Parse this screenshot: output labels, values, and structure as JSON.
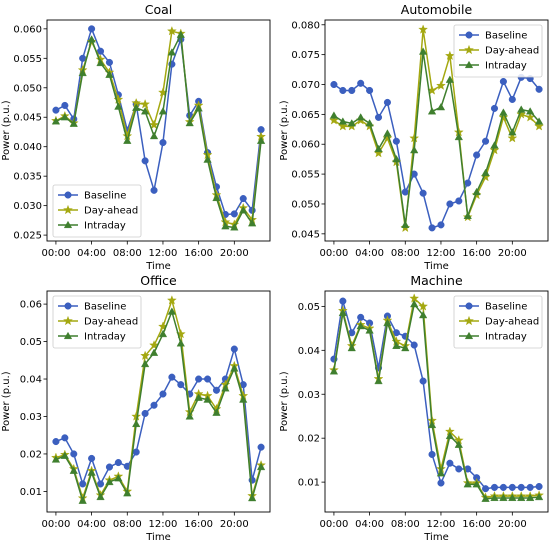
{
  "chart_data": [
    {
      "type": "line",
      "title": "Coal",
      "xlabel": "Time",
      "ylabel": "Power (p.u.)",
      "xlim": [
        -1,
        24
      ],
      "ylim": [
        0.024,
        0.0615
      ],
      "x_ticks": [
        {
          "v": 0,
          "label": "00:00"
        },
        {
          "v": 4,
          "label": "04:00"
        },
        {
          "v": 8,
          "label": "08:00"
        },
        {
          "v": 12,
          "label": "12:00"
        },
        {
          "v": 16,
          "label": "16:00"
        },
        {
          "v": 20,
          "label": "20:00"
        }
      ],
      "y_ticks": [
        0.025,
        0.03,
        0.035,
        0.04,
        0.045,
        0.05,
        0.055,
        0.06
      ],
      "y_decimals": 3,
      "legend": "lower-left",
      "series": [
        {
          "name": "Baseline",
          "color": "#3b5fbf",
          "marker": "circle",
          "values": [
            0.0462,
            0.047,
            0.0447,
            0.055,
            0.06,
            0.0562,
            0.0543,
            0.0488,
            0.0428,
            0.0472,
            0.0376,
            0.0326,
            0.0407,
            0.054,
            0.0582,
            0.0453,
            0.0477,
            0.039,
            0.0332,
            0.0285,
            0.0286,
            0.0312,
            0.0292,
            0.0429
          ]
        },
        {
          "name": "Day-ahead",
          "color": "#a4a810",
          "marker": "star",
          "values": [
            0.0444,
            0.0452,
            0.044,
            0.053,
            0.0578,
            0.0548,
            0.0526,
            0.048,
            0.0418,
            0.0474,
            0.0472,
            0.0437,
            0.0492,
            0.0596,
            0.0592,
            0.0442,
            0.047,
            0.0386,
            0.0318,
            0.0272,
            0.0268,
            0.0296,
            0.0276,
            0.0417
          ]
        },
        {
          "name": "Intraday",
          "color": "#3f7f2e",
          "marker": "triangle",
          "values": [
            0.0443,
            0.045,
            0.0439,
            0.0525,
            0.0582,
            0.0542,
            0.0522,
            0.0468,
            0.041,
            0.0466,
            0.046,
            0.0418,
            0.046,
            0.056,
            0.059,
            0.044,
            0.0465,
            0.0378,
            0.0313,
            0.0265,
            0.0263,
            0.0292,
            0.027,
            0.041
          ]
        }
      ]
    },
    {
      "type": "line",
      "title": "Automobile",
      "xlabel": "Time",
      "ylabel": "Power (p.u.)",
      "xlim": [
        -1,
        24
      ],
      "ylim": [
        0.0438,
        0.0808
      ],
      "x_ticks": [
        {
          "v": 0,
          "label": "00:00"
        },
        {
          "v": 4,
          "label": "04:00"
        },
        {
          "v": 8,
          "label": "08:00"
        },
        {
          "v": 12,
          "label": "12:00"
        },
        {
          "v": 16,
          "label": "16:00"
        },
        {
          "v": 20,
          "label": "20:00"
        }
      ],
      "y_ticks": [
        0.045,
        0.05,
        0.055,
        0.06,
        0.065,
        0.07,
        0.075,
        0.08
      ],
      "y_decimals": 3,
      "legend": "upper-right",
      "series": [
        {
          "name": "Baseline",
          "color": "#3b5fbf",
          "marker": "circle",
          "values": [
            0.07,
            0.069,
            0.069,
            0.0702,
            0.069,
            0.0645,
            0.067,
            0.0605,
            0.052,
            0.055,
            0.0518,
            0.046,
            0.0465,
            0.05,
            0.0505,
            0.0535,
            0.0582,
            0.0605,
            0.066,
            0.0705,
            0.0675,
            0.0712,
            0.071,
            0.0692
          ]
        },
        {
          "name": "Day-ahead",
          "color": "#a4a810",
          "marker": "star",
          "values": [
            0.064,
            0.063,
            0.063,
            0.064,
            0.063,
            0.0585,
            0.061,
            0.057,
            0.046,
            0.061,
            0.0792,
            0.069,
            0.0698,
            0.0748,
            0.062,
            0.0478,
            0.0515,
            0.0545,
            0.059,
            0.0645,
            0.061,
            0.065,
            0.0645,
            0.063
          ]
        },
        {
          "name": "Intraday",
          "color": "#3f7f2e",
          "marker": "triangle",
          "values": [
            0.0648,
            0.0638,
            0.0635,
            0.0645,
            0.0635,
            0.0592,
            0.0618,
            0.0575,
            0.0465,
            0.059,
            0.0755,
            0.0655,
            0.0662,
            0.0708,
            0.0612,
            0.048,
            0.052,
            0.0552,
            0.0598,
            0.0653,
            0.062,
            0.0658,
            0.0655,
            0.0638
          ]
        }
      ]
    },
    {
      "type": "line",
      "title": "Office",
      "xlabel": "Time",
      "ylabel": "Power (p.u.)",
      "xlim": [
        -1,
        24
      ],
      "ylim": [
        0.0045,
        0.0635
      ],
      "x_ticks": [
        {
          "v": 0,
          "label": "00:00"
        },
        {
          "v": 4,
          "label": "04:00"
        },
        {
          "v": 8,
          "label": "08:00"
        },
        {
          "v": 12,
          "label": "12:00"
        },
        {
          "v": 16,
          "label": "16:00"
        },
        {
          "v": 20,
          "label": "20:00"
        }
      ],
      "y_ticks": [
        0.01,
        0.02,
        0.03,
        0.04,
        0.05,
        0.06
      ],
      "y_decimals": 2,
      "legend": "upper-left",
      "series": [
        {
          "name": "Baseline",
          "color": "#3b5fbf",
          "marker": "circle",
          "values": [
            0.0233,
            0.0243,
            0.02,
            0.012,
            0.0188,
            0.012,
            0.0165,
            0.0177,
            0.0167,
            0.0205,
            0.0308,
            0.033,
            0.036,
            0.0405,
            0.0385,
            0.036,
            0.04,
            0.04,
            0.037,
            0.04,
            0.048,
            0.0385,
            0.013,
            0.0218
          ]
        },
        {
          "name": "Day-ahead",
          "color": "#a4a810",
          "marker": "star",
          "values": [
            0.019,
            0.0198,
            0.016,
            0.0082,
            0.0155,
            0.009,
            0.013,
            0.014,
            0.01,
            0.03,
            0.0462,
            0.049,
            0.054,
            0.061,
            0.052,
            0.0312,
            0.036,
            0.0355,
            0.032,
            0.0385,
            0.0435,
            0.0355,
            0.0088,
            0.017
          ]
        },
        {
          "name": "Intraday",
          "color": "#3f7f2e",
          "marker": "triangle",
          "values": [
            0.0185,
            0.0195,
            0.0155,
            0.0075,
            0.015,
            0.0085,
            0.0125,
            0.0135,
            0.0095,
            0.028,
            0.044,
            0.047,
            0.052,
            0.058,
            0.0495,
            0.03,
            0.035,
            0.0345,
            0.031,
            0.0375,
            0.0428,
            0.0345,
            0.0082,
            0.0165
          ]
        }
      ]
    },
    {
      "type": "line",
      "title": "Machine",
      "xlabel": "Time",
      "ylabel": "Power (p.u.)",
      "xlim": [
        -1,
        24
      ],
      "ylim": [
        0.0032,
        0.0535
      ],
      "x_ticks": [
        {
          "v": 0,
          "label": "00:00"
        },
        {
          "v": 4,
          "label": "04:00"
        },
        {
          "v": 8,
          "label": "08:00"
        },
        {
          "v": 12,
          "label": "12:00"
        },
        {
          "v": 16,
          "label": "16:00"
        },
        {
          "v": 20,
          "label": "20:00"
        }
      ],
      "y_ticks": [
        0.01,
        0.02,
        0.03,
        0.04,
        0.05
      ],
      "y_decimals": 2,
      "legend": "upper-right",
      "series": [
        {
          "name": "Baseline",
          "color": "#3b5fbf",
          "marker": "circle",
          "values": [
            0.038,
            0.0512,
            0.044,
            0.0475,
            0.0462,
            0.036,
            0.0478,
            0.044,
            0.0432,
            0.0412,
            0.033,
            0.0163,
            0.0098,
            0.0143,
            0.013,
            0.013,
            0.011,
            0.0085,
            0.0088,
            0.0088,
            0.0088,
            0.0088,
            0.0088,
            0.009
          ]
        },
        {
          "name": "Day-ahead",
          "color": "#a4a810",
          "marker": "star",
          "values": [
            0.0355,
            0.049,
            0.041,
            0.0458,
            0.045,
            0.0335,
            0.0468,
            0.042,
            0.041,
            0.0518,
            0.05,
            0.024,
            0.013,
            0.0215,
            0.0195,
            0.0098,
            0.0098,
            0.0065,
            0.0068,
            0.0068,
            0.0068,
            0.0068,
            0.0068,
            0.007
          ]
        },
        {
          "name": "Intraday",
          "color": "#3f7f2e",
          "marker": "triangle",
          "values": [
            0.0352,
            0.0485,
            0.0405,
            0.0455,
            0.0445,
            0.033,
            0.0462,
            0.041,
            0.0405,
            0.0505,
            0.048,
            0.023,
            0.012,
            0.0205,
            0.0185,
            0.0095,
            0.0095,
            0.0062,
            0.0064,
            0.0064,
            0.0064,
            0.0064,
            0.0064,
            0.0066
          ]
        }
      ]
    }
  ]
}
